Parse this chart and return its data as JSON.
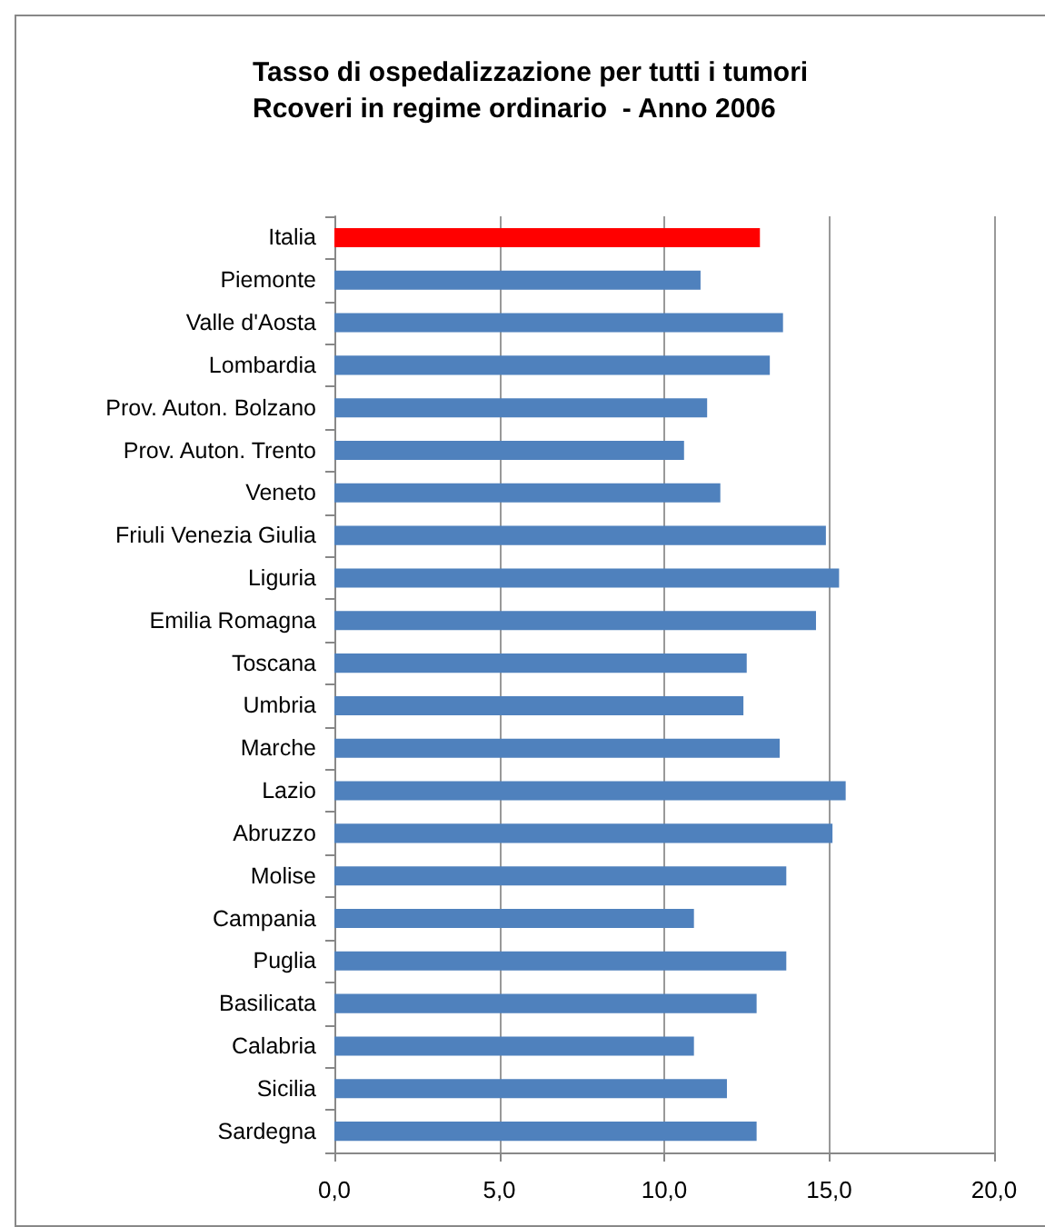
{
  "chart_data": {
    "type": "bar",
    "orientation": "horizontal",
    "title": "Tasso di ospedalizzazione per tutti i tumori\nRcoveri in regime ordinario  - Anno 2006",
    "categories": [
      "Italia",
      "Piemonte",
      "Valle d'Aosta",
      "Lombardia",
      "Prov. Auton. Bolzano",
      "Prov. Auton. Trento",
      "Veneto",
      "Friuli Venezia Giulia",
      "Liguria",
      "Emilia Romagna",
      "Toscana",
      "Umbria",
      "Marche",
      "Lazio",
      "Abruzzo",
      "Molise",
      "Campania",
      "Puglia",
      "Basilicata",
      "Calabria",
      "Sicilia",
      "Sardegna"
    ],
    "values": [
      12.9,
      11.1,
      13.6,
      13.2,
      11.3,
      10.6,
      11.7,
      14.9,
      15.3,
      14.6,
      12.5,
      12.4,
      13.5,
      15.5,
      15.1,
      13.7,
      10.9,
      13.7,
      12.8,
      10.9,
      11.9,
      12.8
    ],
    "colors": [
      "#ff0000",
      "#4f81bd",
      "#4f81bd",
      "#4f81bd",
      "#4f81bd",
      "#4f81bd",
      "#4f81bd",
      "#4f81bd",
      "#4f81bd",
      "#4f81bd",
      "#4f81bd",
      "#4f81bd",
      "#4f81bd",
      "#4f81bd",
      "#4f81bd",
      "#4f81bd",
      "#4f81bd",
      "#4f81bd",
      "#4f81bd",
      "#4f81bd",
      "#4f81bd",
      "#4f81bd"
    ],
    "xlim": [
      0,
      20
    ],
    "xticks": [
      {
        "value": 0,
        "label": "0,0"
      },
      {
        "value": 5,
        "label": "5,0"
      },
      {
        "value": 10,
        "label": "10,0"
      },
      {
        "value": 15,
        "label": "15,0"
      },
      {
        "value": 20,
        "label": "20,0"
      }
    ],
    "grid": "x"
  }
}
